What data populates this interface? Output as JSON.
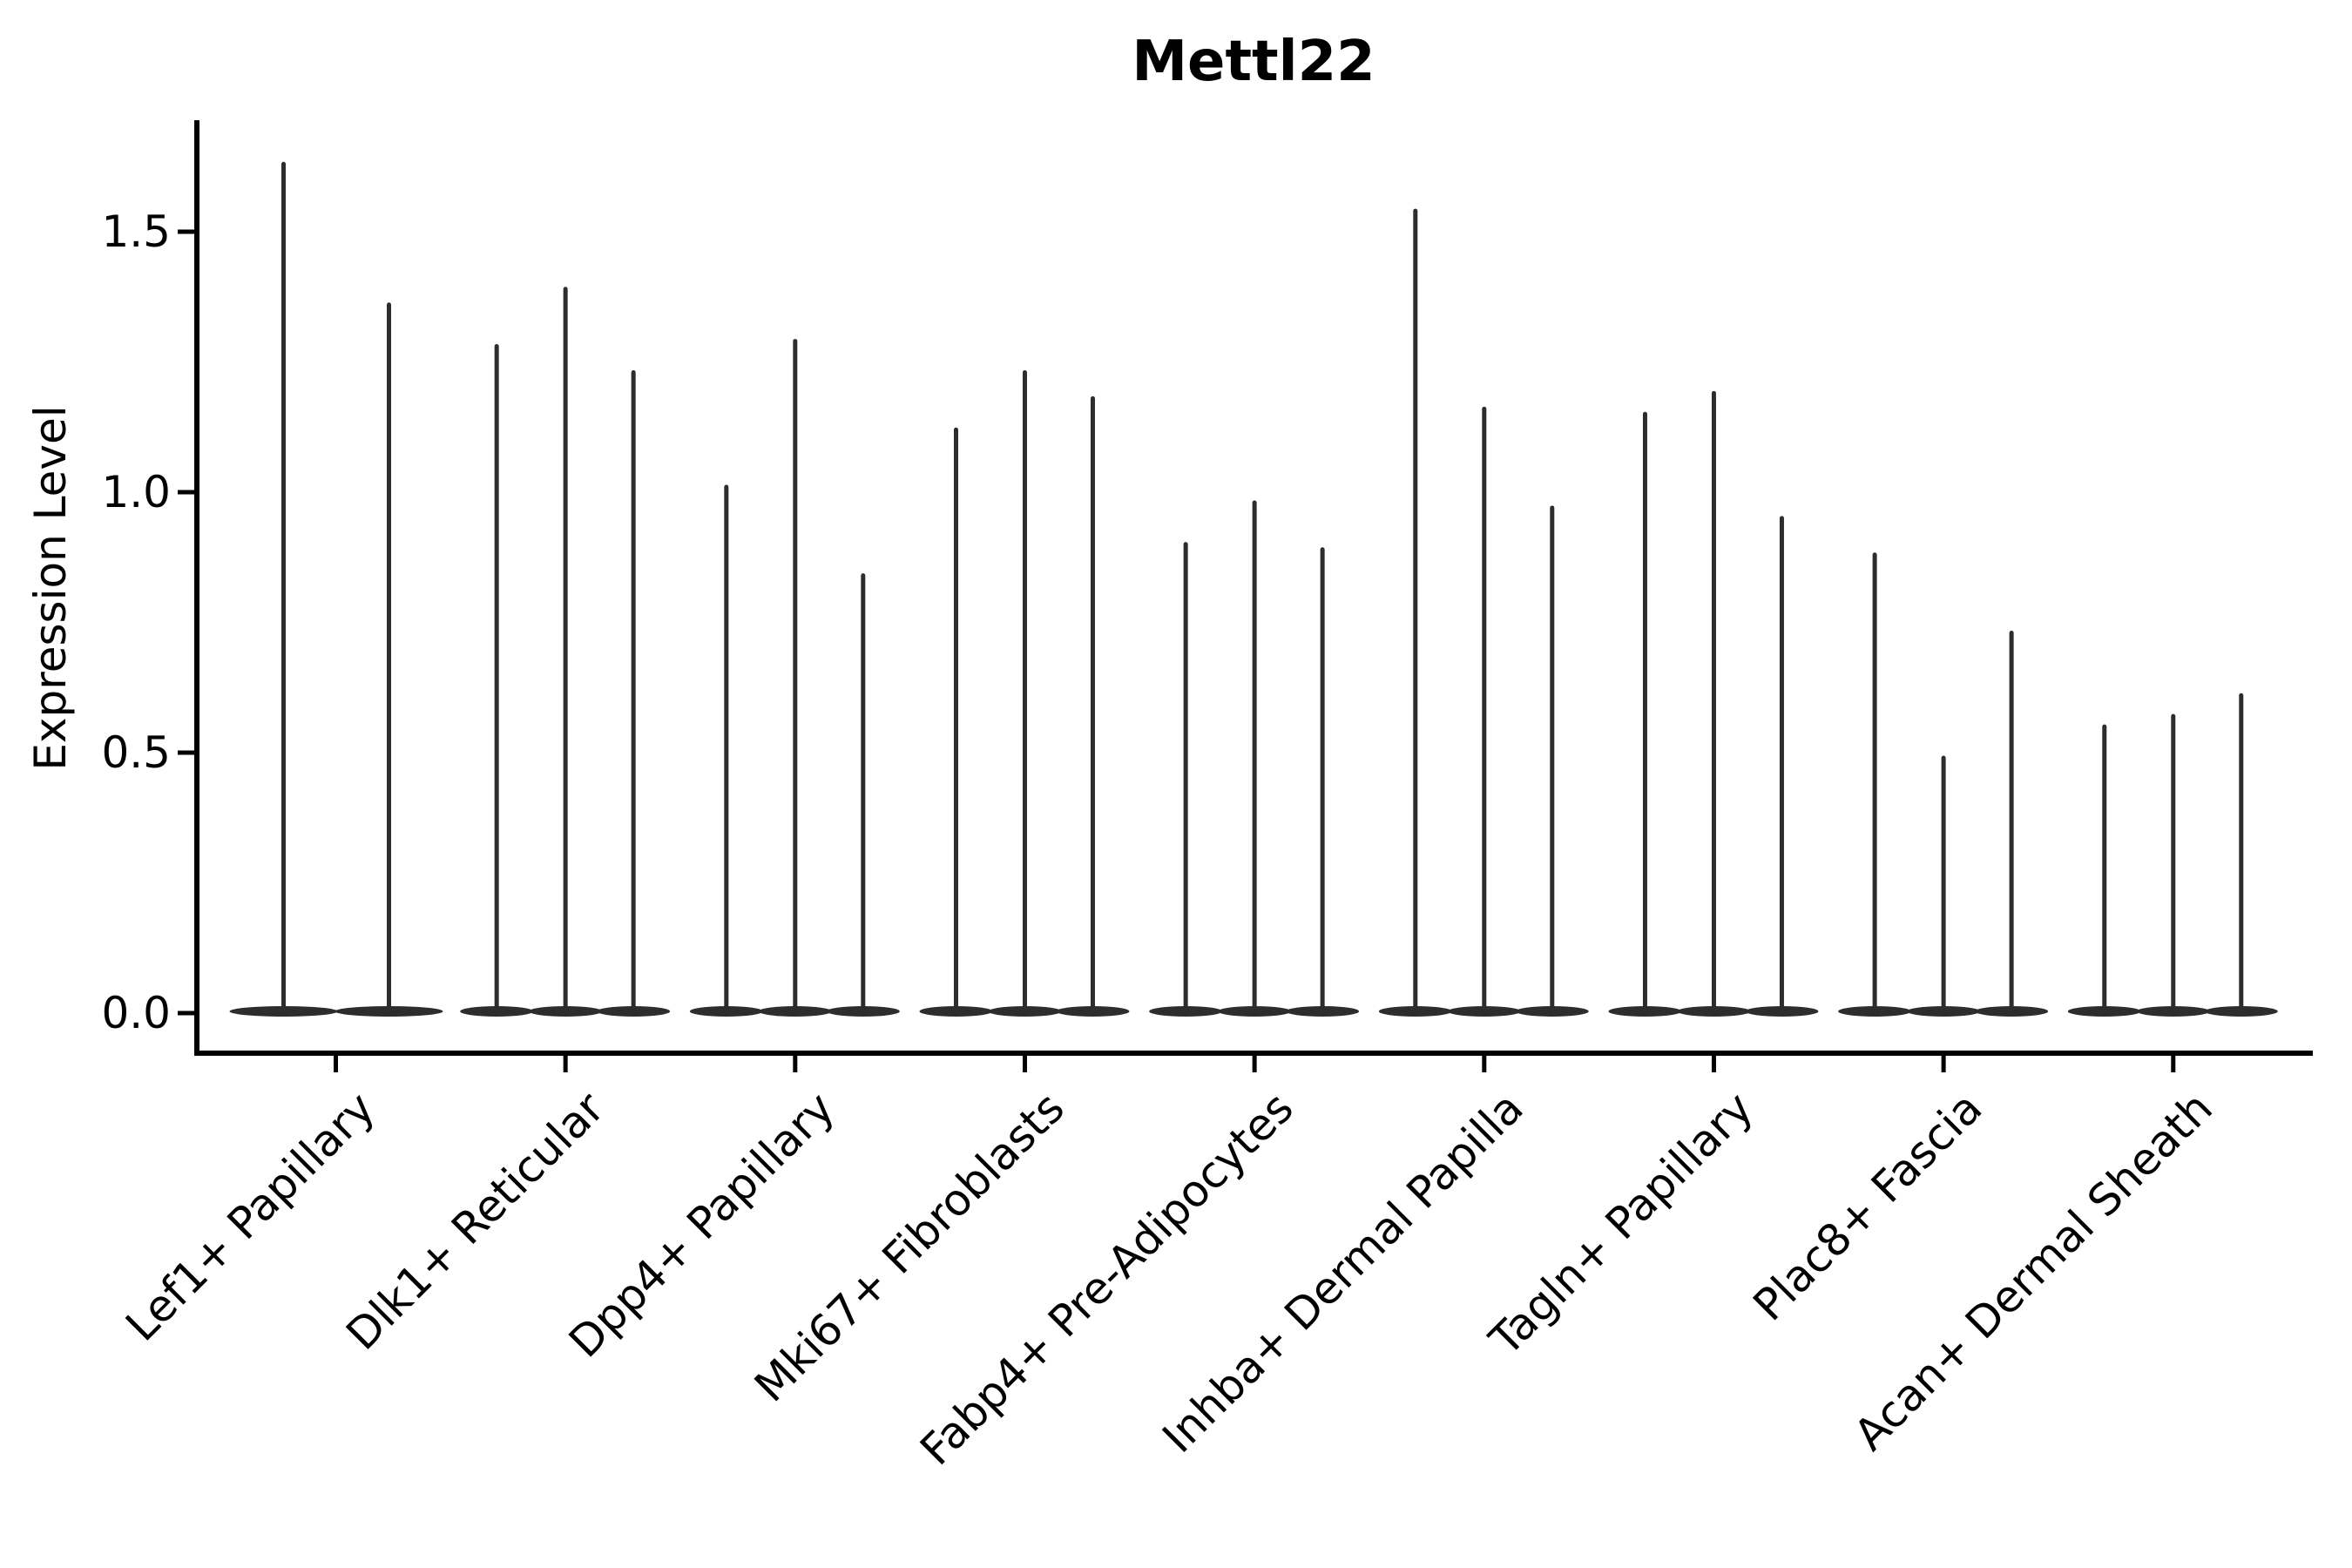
{
  "title": "Mettl22",
  "ylabel": "Expression Level",
  "chart_data": {
    "type": "violin",
    "title": "Mettl22",
    "xlabel": "",
    "ylabel": "Expression Level",
    "grid": false,
    "legend_position": "none",
    "ylim": [
      -0.08,
      1.71
    ],
    "yticks": [
      "0.0",
      "0.5",
      "1.0",
      "1.5"
    ],
    "ytick_values": [
      0.0,
      0.5,
      1.0,
      1.5
    ],
    "categories": [
      "Lef1+ Papillary",
      "Dlk1+ Reticular",
      "Dpp4+ Papillary",
      "Mki67+ Fibroblasts",
      "Fabp4+ Pre-Adipocytes",
      "Inhba+ Dermal Papilla",
      "Tagln+ Papillary",
      "Plac8+ Fascia",
      "Acan+ Dermal Sheath"
    ],
    "series": [
      {
        "category": "Lef1+ Papillary",
        "violin_maxima": [
          1.63,
          1.36
        ]
      },
      {
        "category": "Dlk1+ Reticular",
        "violin_maxima": [
          1.28,
          1.39,
          1.23
        ]
      },
      {
        "category": "Dpp4+ Papillary",
        "violin_maxima": [
          1.01,
          1.29,
          0.84
        ]
      },
      {
        "category": "Mki67+ Fibroblasts",
        "violin_maxima": [
          1.12,
          1.23,
          1.18
        ]
      },
      {
        "category": "Fabp4+ Pre-Adipocytes",
        "violin_maxima": [
          0.9,
          0.98,
          0.89
        ]
      },
      {
        "category": "Inhba+ Dermal Papilla",
        "violin_maxima": [
          1.54,
          1.16,
          0.97
        ]
      },
      {
        "category": "Tagln+ Papillary",
        "violin_maxima": [
          1.15,
          1.19,
          0.95
        ]
      },
      {
        "category": "Plac8+ Fascia",
        "violin_maxima": [
          0.88,
          0.49,
          0.73
        ]
      },
      {
        "category": "Acan+ Dermal Sheath",
        "violin_maxima": [
          0.55,
          0.57,
          0.61
        ]
      }
    ],
    "violin_description": "Each category shows 2-3 needle-thin violins: a wide flat density base at expression 0 and a thin spike rising to the listed maximum.",
    "colors": {
      "violin": "#2d2d2d",
      "axis": "#000000",
      "text": "#000000",
      "background": "#ffffff"
    }
  }
}
